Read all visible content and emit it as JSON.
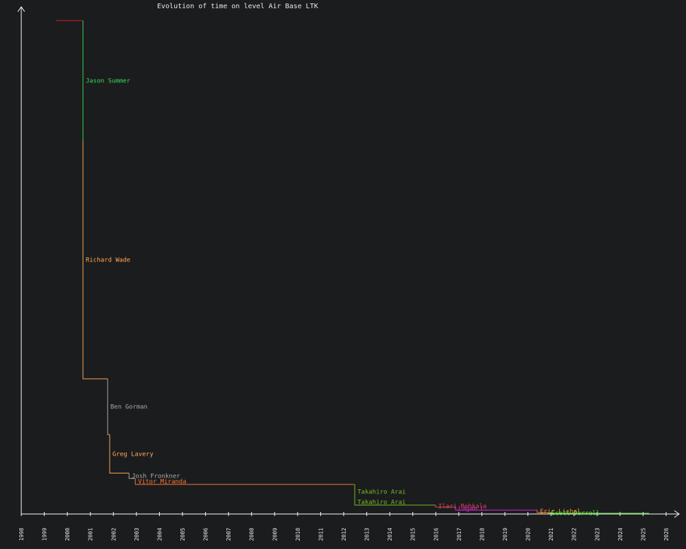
{
  "chart_data": {
    "type": "step",
    "title": "Evolution of time on level Air Base LTK",
    "xlim": [
      1998,
      2026
    ],
    "xticks": [
      1998,
      1999,
      2000,
      2001,
      2002,
      2003,
      2004,
      2005,
      2006,
      2007,
      2008,
      2009,
      2010,
      2011,
      2012,
      2013,
      2014,
      2015,
      2016,
      2017,
      2018,
      2019,
      2020,
      2021,
      2022,
      2023,
      2024,
      2025,
      2026
    ],
    "ylim": [
      0,
      100
    ],
    "x_end": 2025.26,
    "records": [
      {
        "name": null,
        "color": "#cc2222",
        "x": 1999.52,
        "value": 100
      },
      {
        "name": "Jason Summer",
        "color": "#33dd55",
        "x": 2000.68,
        "value": 75.7
      },
      {
        "name": "Richard Wade",
        "color": "#ffaa55",
        "x": 2000.68,
        "value": 27.4
      },
      {
        "name": "Ben Gorman",
        "color": "#aaaaaa",
        "x": 2001.75,
        "value": 16.1
      },
      {
        "name": "Greg Lavery",
        "color": "#ffaa55",
        "x": 2001.84,
        "value": 8.3
      },
      {
        "name": "Josh Fronkner",
        "color": "#aaaaaa",
        "x": 2002.68,
        "value": 7.2
      },
      {
        "name": "Vitor Miranda",
        "color": "#ff7733",
        "x": 2002.95,
        "value": 6.0
      },
      {
        "name": "Takahiro Arai",
        "color": "#77bb22",
        "x": 2012.48,
        "value": 3.0
      },
      {
        "name": "Takahiro Arai",
        "color": "#77bb22",
        "x": 2012.48,
        "value": 1.8
      },
      {
        "name": "Ilari Rehkala",
        "color": "#dd4455",
        "x": 2015.99,
        "value": 1.4
      },
      {
        "name": "Logan C.",
        "color": "#dd22cc",
        "x": 2016.86,
        "value": 0.8
      },
      {
        "name": "Eric Lichal",
        "color": "#ff8822",
        "x": 2020.4,
        "value": 0.3
      },
      {
        "name": "Scott Darrell",
        "color": "#55dd33",
        "x": 2020.9,
        "value": 0.15
      }
    ]
  }
}
